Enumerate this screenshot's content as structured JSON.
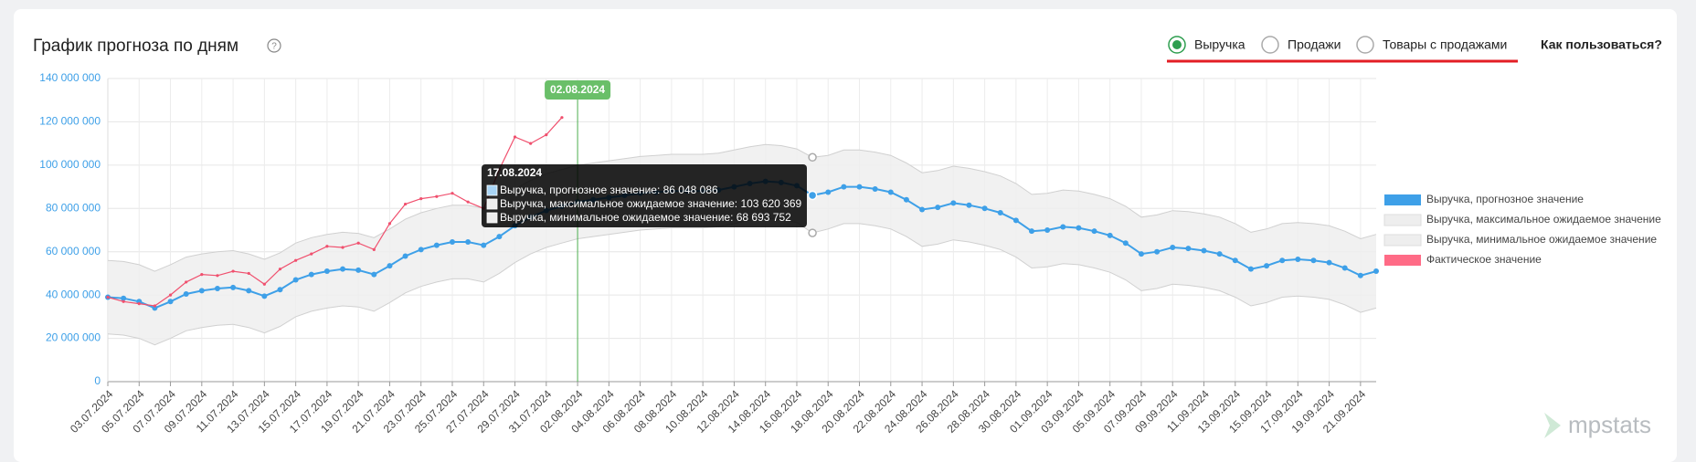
{
  "header": {
    "title": "График прогноза по дням",
    "options": [
      {
        "label": "Выручка",
        "selected": true
      },
      {
        "label": "Продажи",
        "selected": false
      },
      {
        "label": "Товары с продажами",
        "selected": false
      }
    ],
    "help": "Как пользоваться?",
    "logo": "mpstats"
  },
  "chart_data": {
    "type": "line",
    "categories": [
      "03.07.2024",
      null,
      "05.07.2024",
      null,
      "07.07.2024",
      null,
      "09.07.2024",
      null,
      "11.07.2024",
      null,
      "13.07.2024",
      null,
      "15.07.2024",
      null,
      "17.07.2024",
      null,
      "19.07.2024",
      null,
      "21.07.2024",
      null,
      "23.07.2024",
      null,
      "25.07.2024",
      null,
      "27.07.2024",
      null,
      "29.07.2024",
      null,
      "31.07.2024",
      null,
      "02.08.2024",
      null,
      "04.08.2024",
      null,
      "06.08.2024",
      null,
      "08.08.2024",
      null,
      "10.08.2024",
      null,
      "12.08.2024",
      null,
      "14.08.2024",
      null,
      "16.08.2024",
      null,
      "18.08.2024",
      null,
      "20.08.2024",
      null,
      "22.08.2024",
      null,
      "24.08.2024",
      null,
      "26.08.2024",
      null,
      "28.08.2024",
      null,
      "30.08.2024",
      null,
      "01.09.2024",
      null,
      "03.09.2024",
      null,
      "05.09.2024",
      null,
      "07.09.2024",
      null,
      "09.09.2024",
      null,
      "11.09.2024",
      null,
      "13.09.2024",
      null,
      "15.09.2024",
      null,
      "17.09.2024",
      null,
      "19.09.2024",
      null,
      "21.09.2024",
      null
    ],
    "series": [
      {
        "name": "Выручка, прогнозное значение",
        "color": "#3ea0e8",
        "values": [
          39000000,
          38500000,
          37000000,
          34000000,
          37000000,
          40500000,
          42000000,
          43000000,
          43500000,
          42000000,
          39500000,
          42500000,
          47000000,
          49500000,
          51000000,
          52000000,
          51500000,
          49500000,
          53500000,
          58000000,
          61000000,
          63000000,
          64500000,
          64500000,
          63000000,
          67000000,
          72000000,
          76000000,
          79000000,
          81000000,
          83000000,
          84000000,
          85000000,
          86000000,
          87000000,
          87500000,
          88000000,
          88000000,
          88000000,
          88500000,
          90000000,
          91500000,
          92500000,
          92000000,
          90500000,
          86048086,
          87500000,
          90000000,
          90000000,
          89000000,
          87500000,
          84000000,
          79500000,
          80500000,
          82500000,
          81500000,
          80000000,
          78000000,
          74500000,
          69500000,
          70000000,
          71500000,
          71000000,
          69500000,
          67500000,
          64000000,
          59000000,
          60000000,
          62000000,
          61500000,
          60500000,
          59000000,
          56000000,
          52000000,
          53500000,
          56000000,
          56500000,
          56000000,
          55000000,
          52500000,
          49000000,
          51000000
        ]
      },
      {
        "name": "Выручка, максимальное ожидаемое значение",
        "color": "#eeeeee",
        "values": [
          56000000,
          55500000,
          54000000,
          51000000,
          54000000,
          57500000,
          59000000,
          60000000,
          60500000,
          59000000,
          56500000,
          59500000,
          64000000,
          66500000,
          68000000,
          69000000,
          68500000,
          66500000,
          70500000,
          75000000,
          78000000,
          80000000,
          81500000,
          81500000,
          80000000,
          84000000,
          89000000,
          93000000,
          96000000,
          98000000,
          100000000,
          101000000,
          102000000,
          103000000,
          104000000,
          104500000,
          105000000,
          105000000,
          105000000,
          105500000,
          107000000,
          108500000,
          109500000,
          109000000,
          107500000,
          103620369,
          104500000,
          107000000,
          107000000,
          106000000,
          104500000,
          101000000,
          96500000,
          97500000,
          99500000,
          98500000,
          97000000,
          95000000,
          91500000,
          86500000,
          87000000,
          88500000,
          88000000,
          86500000,
          84500000,
          81000000,
          76000000,
          77000000,
          79000000,
          78500000,
          77500000,
          76000000,
          73000000,
          69000000,
          70500000,
          73000000,
          73500000,
          73000000,
          72000000,
          69500000,
          66000000,
          68000000
        ]
      },
      {
        "name": "Выручка, минимальное ожидаемое значение",
        "color": "#eeeeee",
        "values": [
          22000000,
          21500000,
          20000000,
          17000000,
          20000000,
          23500000,
          25000000,
          26000000,
          26500000,
          25000000,
          22500000,
          25500000,
          30000000,
          32500000,
          34000000,
          35000000,
          34500000,
          32500000,
          36500000,
          41000000,
          44000000,
          46000000,
          47500000,
          47500000,
          46000000,
          50000000,
          55000000,
          59000000,
          62000000,
          64000000,
          66000000,
          67000000,
          68000000,
          69000000,
          70000000,
          70500000,
          71000000,
          71000000,
          71000000,
          71500000,
          73000000,
          74500000,
          75500000,
          75000000,
          73500000,
          68693752,
          70500000,
          73000000,
          73000000,
          72000000,
          70500000,
          67000000,
          62500000,
          63500000,
          65500000,
          64500000,
          63000000,
          61000000,
          57500000,
          52500000,
          53000000,
          54500000,
          54000000,
          52500000,
          50500000,
          47000000,
          42000000,
          43000000,
          45000000,
          44500000,
          43500000,
          42000000,
          39000000,
          35000000,
          36500000,
          39000000,
          39500000,
          39000000,
          38000000,
          35500000,
          32000000,
          34000000
        ]
      },
      {
        "name": "Фактическое значение",
        "color": "#ff6b86",
        "values": [
          39000000,
          37000000,
          36000000,
          35000000,
          40000000,
          46000000,
          49500000,
          49000000,
          51000000,
          50000000,
          45000000,
          52000000,
          56000000,
          59000000,
          62500000,
          62000000,
          64000000,
          61000000,
          73000000,
          82000000,
          84500000,
          85500000,
          87000000,
          83000000,
          80000000,
          98000000,
          113000000,
          110000000,
          114000000,
          122000000,
          null,
          null,
          null,
          null,
          null,
          null,
          null,
          null,
          null,
          null,
          null,
          null,
          null,
          null,
          null,
          null,
          null,
          null,
          null,
          null,
          null,
          null,
          null,
          null,
          null,
          null,
          null,
          null,
          null,
          null,
          null,
          null,
          null,
          null,
          null,
          null,
          null,
          null,
          null,
          null,
          null,
          null,
          null,
          null,
          null,
          null,
          null,
          null,
          null,
          null,
          null,
          null
        ]
      }
    ],
    "ylim": [
      0,
      140000000
    ],
    "yticks": [
      0,
      {
        "value": 20000000,
        "label": "20 000 000"
      },
      {
        "value": 40000000,
        "label": "40 000 000"
      },
      {
        "value": 60000000,
        "label": "60 000 000"
      },
      {
        "value": 80000000,
        "label": "80 000 000"
      },
      {
        "value": 100000000,
        "label": "100 000 000"
      },
      {
        "value": 120000000,
        "label": "120 000 000"
      },
      {
        "value": 140000000,
        "label": "140 000 000"
      }
    ],
    "grid": true,
    "legend": "right",
    "marker_date": "02.08.2024",
    "tooltip": {
      "date": "17.08.2024",
      "lines": [
        "Выручка, прогнозное значение: 86 048 086",
        "Выручка, максимальное ожидаемое значение: 103 620 369",
        "Выручка, минимальное ожидаемое значение: 68 693 752"
      ]
    }
  }
}
